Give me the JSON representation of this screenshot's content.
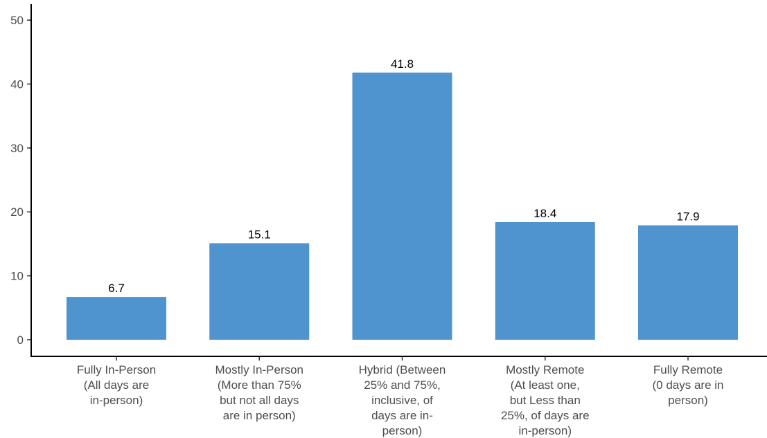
{
  "chart_data": {
    "type": "bar",
    "categories": [
      [
        "Fully In-Person",
        "(All days are",
        "in-person)"
      ],
      [
        "Mostly In-Person",
        "(More than 75%",
        "but not all days",
        "are in person)"
      ],
      [
        "Hybrid (Between",
        "25% and 75%,",
        "inclusive, of",
        "days are in-",
        "person)"
      ],
      [
        "Mostly Remote",
        "(At least one,",
        "but Less than",
        "25%, of days are",
        "in-person)"
      ],
      [
        "Fully Remote",
        "(0 days are in",
        "person)"
      ]
    ],
    "values": [
      6.7,
      15.1,
      41.8,
      18.4,
      17.9
    ],
    "data_labels": [
      "6.7",
      "15.1",
      "41.8",
      "18.4",
      "17.9"
    ],
    "y_ticks": [
      0,
      10,
      20,
      30,
      40,
      50
    ],
    "ylim": [
      -2.6,
      52.5
    ],
    "title": "",
    "xlabel": "",
    "ylabel": "",
    "grid": false,
    "bar_color": "#4f94cf"
  }
}
